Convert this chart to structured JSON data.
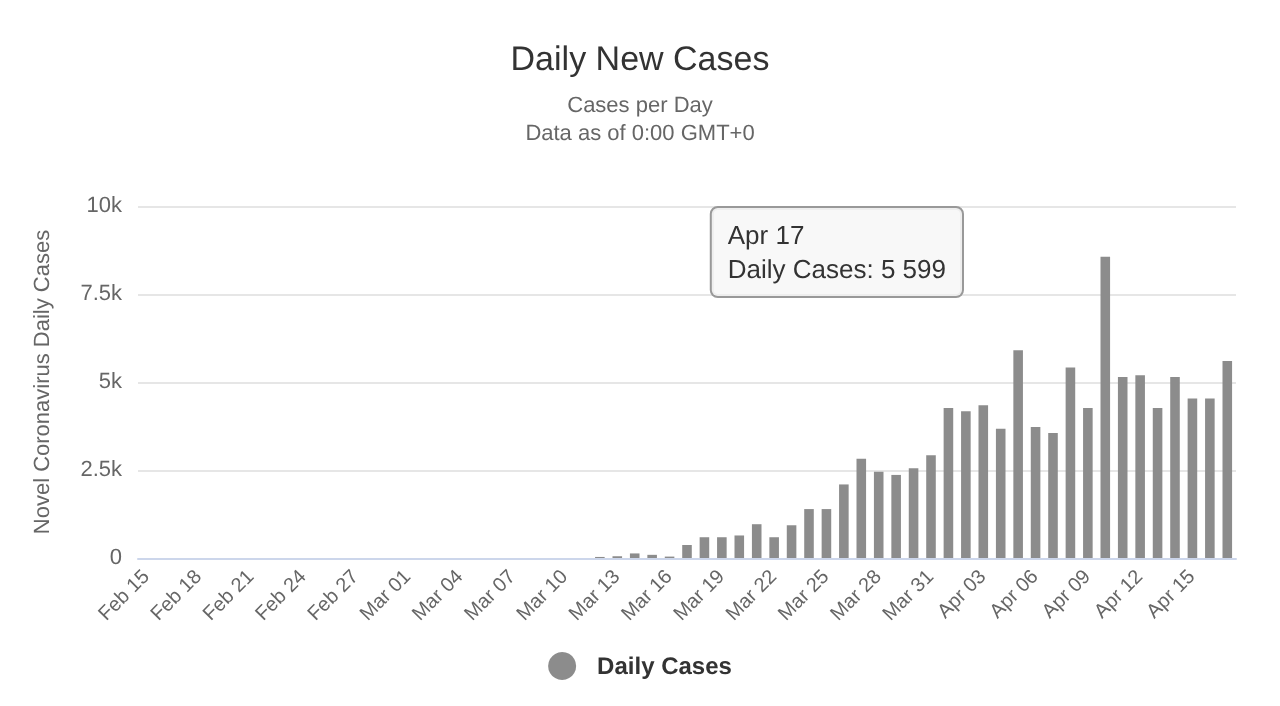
{
  "chart_data": {
    "type": "bar",
    "title": "Daily New Cases",
    "subtitle": "Cases per Day\nData as of 0:00 GMT+0",
    "ylabel": "Novel Coronavirus Daily Cases",
    "categories": [
      "Feb 15",
      null,
      null,
      "Feb 18",
      null,
      null,
      "Feb 21",
      null,
      null,
      "Feb 24",
      null,
      null,
      "Feb 27",
      null,
      null,
      "Mar 01",
      null,
      null,
      "Mar 04",
      null,
      null,
      "Mar 07",
      null,
      null,
      "Mar 10",
      null,
      null,
      "Mar 13",
      null,
      null,
      "Mar 16",
      null,
      null,
      "Mar 19",
      null,
      null,
      "Mar 22",
      null,
      null,
      "Mar 25",
      null,
      null,
      "Mar 28",
      null,
      null,
      "Mar 31",
      null,
      null,
      "Apr 03",
      null,
      null,
      "Apr 06",
      null,
      null,
      "Apr 09",
      null,
      null,
      "Apr 12",
      null,
      null,
      "Apr 15",
      null,
      null
    ],
    "series": [
      {
        "name": "Daily Cases",
        "color": "#8c8c8c",
        "values": [
          0,
          0,
          0,
          0,
          0,
          0,
          0,
          0,
          0,
          0,
          0,
          0,
          0,
          0,
          0,
          0,
          0,
          0,
          0,
          0,
          0,
          0,
          0,
          0,
          0,
          0,
          30,
          50,
          130,
          90,
          40,
          370,
          590,
          590,
          640,
          960,
          590,
          930,
          1390,
          1390,
          2090,
          2820,
          2450,
          2360,
          2550,
          2920,
          4260,
          4170,
          4340,
          3670,
          5900,
          3720,
          3550,
          5410,
          4260,
          8560,
          5140,
          5190,
          4260,
          5140,
          4530,
          4530,
          5599
        ]
      }
    ],
    "ylim": [
      0,
      10000
    ],
    "yticks": [
      {
        "value": 0,
        "label": "0"
      },
      {
        "value": 2500,
        "label": "2.5k"
      },
      {
        "value": 5000,
        "label": "5k"
      },
      {
        "value": 7500,
        "label": "7.5k"
      },
      {
        "value": 10000,
        "label": "10k"
      }
    ],
    "grid": "y",
    "legend": "bottom",
    "annotations": [
      "Apr 17\nDaily Cases: 5 599"
    ]
  }
}
